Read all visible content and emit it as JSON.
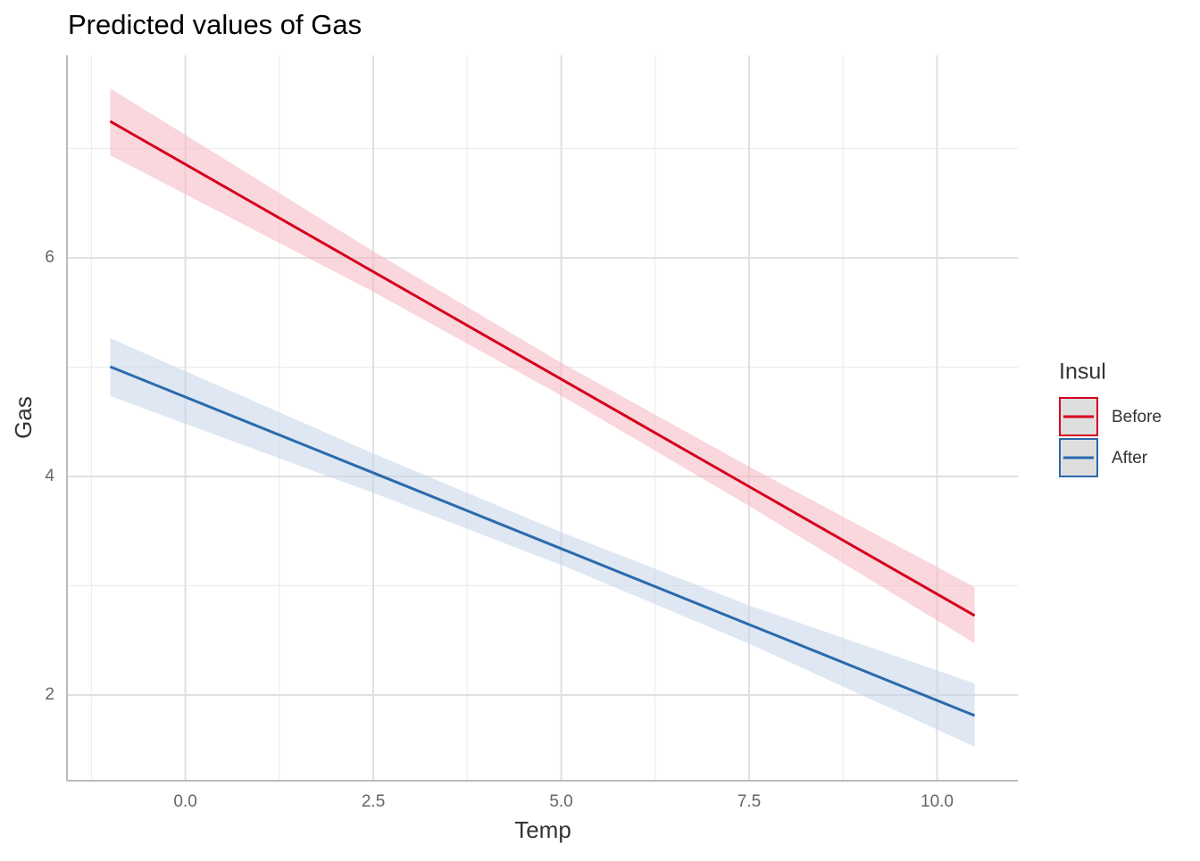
{
  "chart_data": {
    "type": "line",
    "title": "Predicted values of Gas",
    "x_label": "Temp",
    "y_label": "Gas",
    "x": [
      -1,
      2.5,
      5,
      7.5,
      10.5
    ],
    "series": [
      {
        "name": "Before",
        "color": "#d6001c",
        "band_color": "#f4b6bf",
        "values": [
          7.249,
          5.873,
          4.89,
          3.907,
          2.727
        ],
        "lower": [
          6.939,
          5.69,
          4.74,
          3.73,
          2.473
        ],
        "upper": [
          7.551,
          6.06,
          5.04,
          4.09,
          2.988
        ]
      },
      {
        "name": "After",
        "color": "#2b6aad",
        "band_color": "#c3d3e8",
        "values": [
          5.004,
          4.033,
          3.339,
          2.645,
          1.812
        ],
        "lower": [
          4.735,
          3.85,
          3.19,
          2.47,
          1.527
        ],
        "upper": [
          5.265,
          4.21,
          3.49,
          2.82,
          2.106
        ]
      }
    ],
    "xlim": [
      -1.575,
      11.075
    ],
    "ylim": [
      1.216,
      7.853
    ],
    "xticks": [
      {
        "value": 0,
        "label": "0.0"
      },
      2.5,
      {
        "value": 5,
        "label": "5.0"
      },
      7.5,
      {
        "value": 10,
        "label": "10.0"
      }
    ],
    "xminor": [
      -1.25,
      1.25,
      3.75,
      6.25,
      8.75
    ],
    "yticks": [
      2,
      4,
      6
    ],
    "yminor": [
      3,
      5,
      7
    ],
    "grid": true,
    "legend_title": "Insul",
    "legend_position": "right"
  }
}
